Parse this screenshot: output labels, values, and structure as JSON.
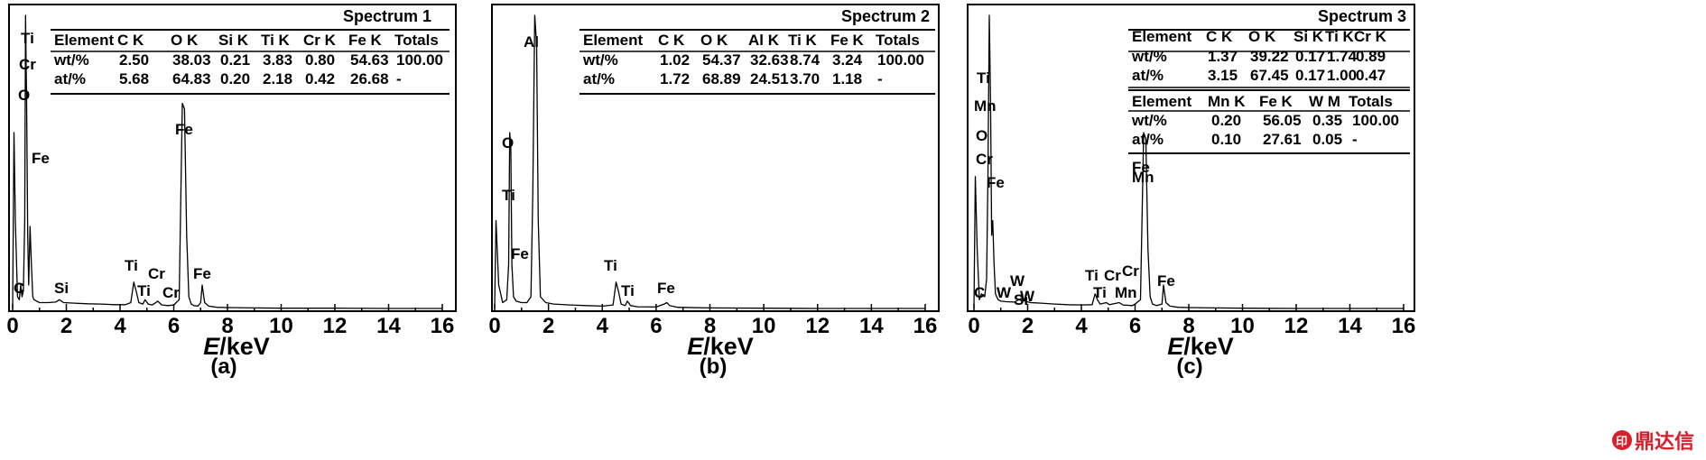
{
  "chart_data": [
    {
      "type": "line",
      "panel_label": "(a)",
      "spectrum_title": "Spectrum 1",
      "xlabel_italic": "E",
      "xlabel_rest": "/keV",
      "xlim": [
        0,
        16.5
      ],
      "xticks": [
        0,
        2,
        4,
        6,
        8,
        10,
        12,
        14,
        16
      ],
      "grid": false,
      "series": [
        {
          "x": [
            0,
            0.05,
            0.1,
            0.18,
            0.25,
            0.3,
            0.35,
            0.4,
            0.45,
            0.48,
            0.52,
            0.56,
            0.6,
            0.65,
            0.7,
            0.75,
            0.8,
            0.9,
            1.0,
            1.3,
            1.6,
            1.74,
            1.9,
            2.3,
            2.8,
            3.3,
            3.8,
            4.2,
            4.4,
            4.51,
            4.6,
            4.7,
            4.85,
            4.93,
            5.05,
            5.2,
            5.41,
            5.55,
            5.8,
            6.0,
            6.2,
            6.32,
            6.4,
            6.48,
            6.56,
            6.65,
            6.75,
            6.9,
            7.0,
            7.06,
            7.15,
            7.3,
            7.6,
            8,
            9,
            10,
            12,
            14,
            16
          ],
          "y": [
            0,
            60,
            30,
            4,
            3,
            8,
            4,
            6,
            30,
            100,
            70,
            25,
            8,
            28,
            15,
            4,
            3,
            2.5,
            2,
            2,
            2.2,
            3,
            2,
            1.8,
            1.6,
            1.5,
            1.3,
            1.3,
            2,
            9,
            6,
            2,
            1.5,
            3,
            1.5,
            1.2,
            2.5,
            1.2,
            1.0,
            1.2,
            3,
            70,
            68,
            25,
            4,
            1.5,
            1,
            0.8,
            2,
            8,
            2,
            0.8,
            0.4,
            0.3,
            0.2,
            0.1,
            0.1,
            0,
            0
          ]
        }
      ],
      "peak_labels": [
        "Ti",
        "Cr",
        "O",
        "Fe",
        "C",
        "Si",
        "Ti",
        "Ti",
        "Cr",
        "Cr",
        "Fe",
        "Fe"
      ],
      "table": {
        "headers": [
          "Element",
          "C K",
          "O K",
          "Si K",
          "Ti K",
          "Cr K",
          "Fe K",
          "Totals"
        ],
        "rows": [
          [
            "wt/%",
            "2.50",
            "38.03",
            "0.21",
            "3.83",
            "0.80",
            "54.63",
            "100.00"
          ],
          [
            "at/%",
            "5.68",
            "64.83",
            "0.20",
            "2.18",
            "0.42",
            "26.68",
            "-"
          ]
        ]
      }
    },
    {
      "type": "line",
      "panel_label": "(b)",
      "spectrum_title": "Spectrum 2",
      "xlabel_italic": "E",
      "xlabel_rest": "/keV",
      "xlim": [
        0,
        16.5
      ],
      "xticks": [
        0,
        2,
        4,
        6,
        8,
        10,
        12,
        14,
        16
      ],
      "grid": false,
      "series": [
        {
          "x": [
            0,
            0.05,
            0.15,
            0.3,
            0.45,
            0.52,
            0.56,
            0.6,
            0.64,
            0.7,
            0.8,
            1.0,
            1.2,
            1.35,
            1.42,
            1.49,
            1.56,
            1.62,
            1.7,
            1.9,
            2.2,
            2.8,
            3.4,
            4.0,
            4.4,
            4.51,
            4.6,
            4.7,
            4.85,
            4.93,
            5.05,
            5.3,
            6.0,
            6.3,
            6.4,
            6.5,
            6.8,
            8,
            10,
            12,
            14,
            16
          ],
          "y": [
            0,
            30,
            8,
            2,
            3,
            15,
            60,
            55,
            15,
            4,
            2.5,
            2,
            2,
            4,
            40,
            100,
            90,
            30,
            4,
            2,
            1.5,
            1.2,
            1,
            0.8,
            1.2,
            9,
            6,
            1.5,
            1,
            2.5,
            1,
            0.6,
            0.5,
            1.5,
            2,
            1,
            0.4,
            0.2,
            0.1,
            0,
            0,
            0
          ]
        }
      ],
      "peak_labels": [
        "Al",
        "O",
        "Ti",
        "Fe",
        "Ti",
        "Ti",
        "Fe"
      ],
      "table": {
        "headers": [
          "Element",
          "C K",
          "O K",
          "Al K",
          "Ti K",
          "Fe K",
          "Totals"
        ],
        "rows": [
          [
            "wt/%",
            "1.02",
            "54.37",
            "32.63",
            "8.74",
            "3.24",
            "100.00"
          ],
          [
            "at/%",
            "1.72",
            "68.89",
            "24.51",
            "3.70",
            "1.18",
            "-"
          ]
        ]
      }
    },
    {
      "type": "line",
      "panel_label": "(c)",
      "spectrum_title": "Spectrum 3",
      "xlabel_italic": "E",
      "xlabel_rest": "/keV",
      "xlim": [
        0,
        16.5
      ],
      "xticks": [
        0,
        2,
        4,
        6,
        8,
        10,
        12,
        14,
        16
      ],
      "grid": false,
      "series": [
        {
          "x": [
            0,
            0.05,
            0.12,
            0.2,
            0.28,
            0.4,
            0.47,
            0.52,
            0.57,
            0.62,
            0.66,
            0.7,
            0.75,
            0.8,
            0.9,
            1.0,
            1.2,
            1.5,
            1.78,
            1.9,
            2.1,
            2.5,
            3.0,
            3.5,
            4.0,
            4.4,
            4.51,
            4.6,
            4.7,
            4.93,
            5.05,
            5.41,
            5.55,
            5.9,
            6.0,
            6.2,
            6.32,
            6.4,
            6.48,
            6.56,
            6.65,
            6.8,
            7.0,
            7.06,
            7.15,
            7.3,
            7.6,
            8,
            9,
            10,
            12,
            14,
            16
          ],
          "y": [
            0,
            45,
            20,
            3,
            5,
            4,
            10,
            45,
            100,
            70,
            25,
            30,
            15,
            5,
            3,
            2.5,
            2.3,
            2.2,
            3.5,
            2.5,
            2,
            1.8,
            1.5,
            1.3,
            1.2,
            1.3,
            5,
            3,
            1.5,
            2,
            1.3,
            2,
            1.2,
            1,
            1.5,
            3,
            60,
            58,
            20,
            4,
            1.5,
            1,
            1.5,
            8,
            2,
            0.8,
            0.4,
            0.3,
            0.2,
            0.1,
            0,
            0,
            0
          ]
        }
      ],
      "peak_labels": [
        "Ti",
        "Mn",
        "O",
        "Cr",
        "Fe",
        "Fe",
        "Mn",
        "W",
        "Si",
        "C",
        "W",
        "W",
        "Ti",
        "Cr",
        "Cr",
        "Ti",
        "Mn",
        "Fe"
      ],
      "table": {
        "headers": [
          "Element",
          "C K",
          "O K",
          "Si K",
          "Ti K",
          "Cr K"
        ],
        "rows": [
          [
            "wt/%",
            "1.37",
            "39.22",
            "0.17",
            "1.74",
            "0.89"
          ],
          [
            "at/%",
            "3.15",
            "67.45",
            "0.17",
            "1.00",
            "0.47"
          ]
        ],
        "headers2": [
          "Element",
          "Mn K",
          "Fe K",
          "W M",
          "Totals"
        ],
        "rows2": [
          [
            "wt/%",
            "0.20",
            "56.05",
            "0.35",
            "100.00"
          ],
          [
            "at/%",
            "0.10",
            "27.61",
            "0.05",
            "-"
          ]
        ]
      }
    }
  ],
  "watermark": "鼎达信",
  "colors": {
    "axis": "#000000",
    "background": "#ffffff",
    "watermark": "#d81e2b"
  }
}
